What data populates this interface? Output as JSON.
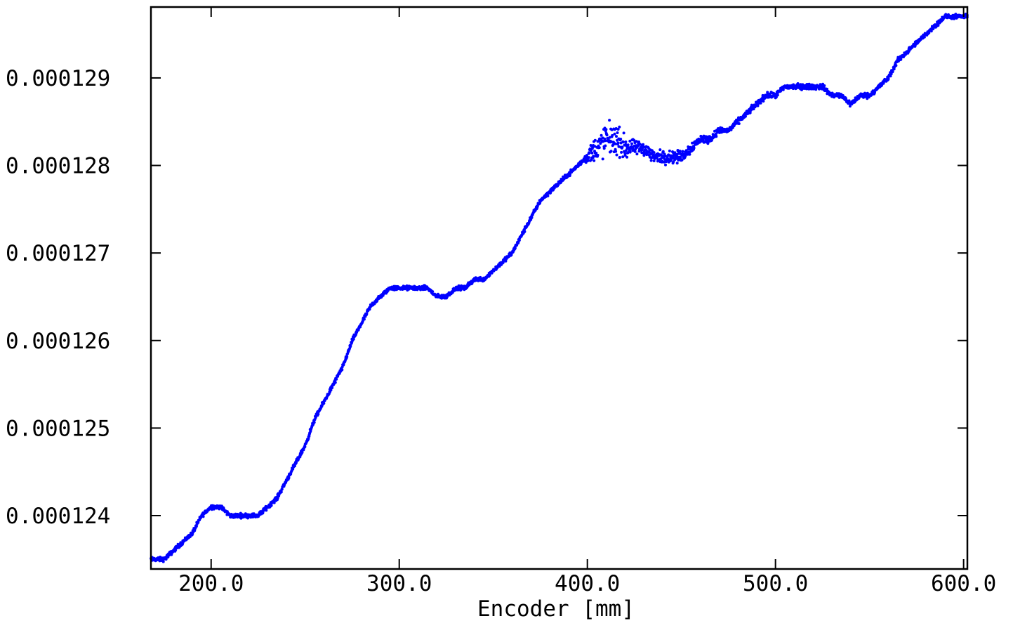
{
  "chart_data": {
    "type": "scatter",
    "title": "",
    "xlabel": "Encoder [mm]",
    "ylabel": "",
    "xlim": [
      168,
      602
    ],
    "ylim": [
      0.00012339,
      0.00012981
    ],
    "xticks": [
      200,
      300,
      400,
      500,
      600
    ],
    "xtick_labels": [
      "200.0",
      "300.0",
      "400.0",
      "500.0",
      "600.0"
    ],
    "yticks": [
      0.000124,
      0.000125,
      0.000126,
      0.000127,
      0.000128,
      0.000129
    ],
    "ytick_labels": [
      "0.000124",
      "0.000125",
      "0.000126",
      "0.000127",
      "0.000128",
      "0.000129"
    ],
    "grid": false,
    "marker_color": "#0000ff",
    "series": [
      {
        "trend": [
          [
            168,
            0.0001235
          ],
          [
            175,
            0.0001235
          ],
          [
            180,
            0.0001236
          ],
          [
            185,
            0.0001237
          ],
          [
            190,
            0.0001238
          ],
          [
            195,
            0.000124
          ],
          [
            200,
            0.0001241
          ],
          [
            205,
            0.0001241
          ],
          [
            210,
            0.000124
          ],
          [
            215,
            0.000124
          ],
          [
            220,
            0.000124
          ],
          [
            225,
            0.000124
          ],
          [
            230,
            0.0001241
          ],
          [
            235,
            0.0001242
          ],
          [
            240,
            0.0001244
          ],
          [
            245,
            0.0001246
          ],
          [
            250,
            0.0001248
          ],
          [
            255,
            0.0001251
          ],
          [
            260,
            0.0001253
          ],
          [
            265,
            0.0001255
          ],
          [
            270,
            0.0001257
          ],
          [
            275,
            0.000126
          ],
          [
            280,
            0.0001262
          ],
          [
            285,
            0.0001264
          ],
          [
            290,
            0.0001265
          ],
          [
            295,
            0.0001266
          ],
          [
            300,
            0.0001266
          ],
          [
            305,
            0.0001266
          ],
          [
            310,
            0.0001266
          ],
          [
            315,
            0.0001266
          ],
          [
            320,
            0.0001265
          ],
          [
            325,
            0.0001265
          ],
          [
            330,
            0.0001266
          ],
          [
            335,
            0.0001266
          ],
          [
            340,
            0.0001267
          ],
          [
            345,
            0.0001267
          ],
          [
            350,
            0.0001268
          ],
          [
            355,
            0.0001269
          ],
          [
            360,
            0.000127
          ],
          [
            365,
            0.0001272
          ],
          [
            370,
            0.0001274
          ],
          [
            375,
            0.0001276
          ],
          [
            380,
            0.0001277
          ],
          [
            385,
            0.0001278
          ],
          [
            390,
            0.0001279
          ],
          [
            395,
            0.000128
          ],
          [
            400,
            0.0001281
          ],
          [
            405,
            0.0001282
          ],
          [
            410,
            0.0001283
          ],
          [
            415,
            0.0001283
          ],
          [
            420,
            0.0001282
          ],
          [
            425,
            0.0001282
          ],
          [
            430,
            0.0001282
          ],
          [
            435,
            0.0001281
          ],
          [
            440,
            0.0001281
          ],
          [
            445,
            0.0001281
          ],
          [
            450,
            0.0001281
          ],
          [
            455,
            0.0001282
          ],
          [
            460,
            0.0001283
          ],
          [
            465,
            0.0001283
          ],
          [
            470,
            0.0001284
          ],
          [
            475,
            0.0001284
          ],
          [
            480,
            0.0001285
          ],
          [
            485,
            0.0001286
          ],
          [
            490,
            0.0001287
          ],
          [
            495,
            0.0001288
          ],
          [
            500,
            0.0001288
          ],
          [
            505,
            0.0001289
          ],
          [
            510,
            0.0001289
          ],
          [
            515,
            0.0001289
          ],
          [
            520,
            0.0001289
          ],
          [
            525,
            0.0001289
          ],
          [
            530,
            0.0001288
          ],
          [
            535,
            0.0001288
          ],
          [
            540,
            0.0001287
          ],
          [
            545,
            0.0001288
          ],
          [
            550,
            0.0001288
          ],
          [
            555,
            0.0001289
          ],
          [
            560,
            0.000129
          ],
          [
            565,
            0.0001292
          ],
          [
            570,
            0.0001293
          ],
          [
            575,
            0.0001294
          ],
          [
            580,
            0.0001295
          ],
          [
            585,
            0.0001296
          ],
          [
            590,
            0.0001297
          ],
          [
            595,
            0.0001297
          ],
          [
            600,
            0.0001297
          ],
          [
            602,
            0.0001297
          ]
        ],
        "spread": [
          [
            168,
            3.5e-08
          ],
          [
            398,
            3.5e-08
          ],
          [
            402,
            1.8e-07
          ],
          [
            410,
            2.8e-07
          ],
          [
            418,
            2.2e-07
          ],
          [
            425,
            1.2e-07
          ],
          [
            450,
            1e-07
          ],
          [
            470,
            5e-08
          ],
          [
            602,
            3.5e-08
          ]
        ],
        "point_count": 2600
      }
    ]
  }
}
